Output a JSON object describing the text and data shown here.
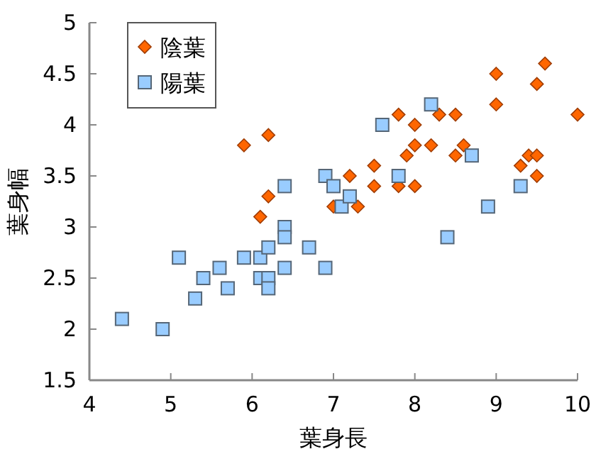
{
  "chart_data": {
    "type": "scatter",
    "xlabel": "葉身長",
    "ylabel": "葉身幅",
    "xlim": [
      4,
      10
    ],
    "xticks": [
      4,
      5,
      6,
      7,
      8,
      9,
      10
    ],
    "ylim": [
      1.5,
      5
    ],
    "yticks": [
      1.5,
      2,
      2.5,
      3,
      3.5,
      4,
      4.5,
      5
    ],
    "legend": "top left",
    "grid": false,
    "series": [
      {
        "name": "陰葉",
        "color": "#ff6600",
        "marker": "diamond",
        "x": [
          5.9,
          6.2,
          6.2,
          6.1,
          7.0,
          7.3,
          7.2,
          7.5,
          7.5,
          7.8,
          8.0,
          7.8,
          8.0,
          7.9,
          8.0,
          8.2,
          8.3,
          8.5,
          8.5,
          8.6,
          9.0,
          9.0,
          9.5,
          9.6,
          10.0,
          9.3,
          9.4,
          9.5,
          9.5
        ],
        "values": [
          3.8,
          3.9,
          3.3,
          3.1,
          3.2,
          3.2,
          3.5,
          3.6,
          3.4,
          4.1,
          4.0,
          3.4,
          3.4,
          3.7,
          3.8,
          3.8,
          4.1,
          4.1,
          3.7,
          3.8,
          4.5,
          4.2,
          4.4,
          4.6,
          4.1,
          3.6,
          3.7,
          3.7,
          3.5
        ]
      },
      {
        "name": "陽葉",
        "color": "#99ccff",
        "marker": "square",
        "x": [
          4.4,
          4.9,
          5.1,
          5.3,
          5.4,
          5.6,
          5.7,
          5.9,
          6.1,
          6.1,
          6.2,
          6.2,
          6.2,
          6.4,
          6.4,
          6.4,
          6.4,
          6.7,
          6.9,
          6.9,
          7.0,
          7.1,
          7.2,
          7.6,
          7.8,
          8.2,
          8.4,
          8.7,
          8.9,
          9.3
        ],
        "values": [
          2.1,
          2.0,
          2.7,
          2.3,
          2.5,
          2.6,
          2.4,
          2.7,
          2.7,
          2.5,
          2.8,
          2.5,
          2.4,
          3.4,
          3.0,
          2.9,
          2.6,
          2.8,
          2.6,
          3.5,
          3.4,
          3.2,
          3.3,
          4.0,
          3.5,
          4.2,
          2.9,
          3.7,
          3.2,
          3.4
        ]
      }
    ]
  }
}
